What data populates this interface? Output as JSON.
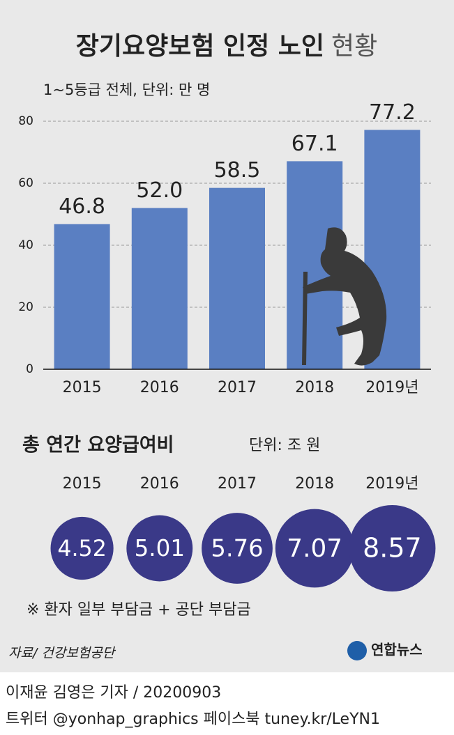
{
  "title": "장기요양보험 인정 노인",
  "title_suffix": "현황",
  "chart_data": [
    {
      "type": "bar",
      "subtitle": "1~5등급 전체, 단위: 만 명",
      "categories": [
        "2015",
        "2016",
        "2017",
        "2018",
        "2019년"
      ],
      "values": [
        46.8,
        52.0,
        58.5,
        67.1,
        77.2
      ],
      "value_labels": [
        "46.8",
        "52.0",
        "58.5",
        "67.1",
        "77.2"
      ],
      "color": "#5a7fc2",
      "ylim": [
        0,
        80
      ],
      "yticks": [
        0,
        20,
        40,
        60,
        80
      ],
      "grid": true
    },
    {
      "type": "bubble",
      "title": "총 연간 요양급여비",
      "subtitle": "단위: 조 원",
      "categories": [
        "2015",
        "2016",
        "2017",
        "2018",
        "2019년"
      ],
      "values": [
        4.52,
        5.01,
        5.76,
        7.07,
        8.57
      ],
      "color": "#3a3988",
      "note": "※ 환자 일부 부담금 + 공단 부담금"
    }
  ],
  "source": "자료/ 건강보험공단",
  "logo": "연합뉴스",
  "byline": "이재윤 김영은 기자 / 20200903",
  "social": "트위터 @yonhap_graphics  페이스북 tuney.kr/LeYN1"
}
